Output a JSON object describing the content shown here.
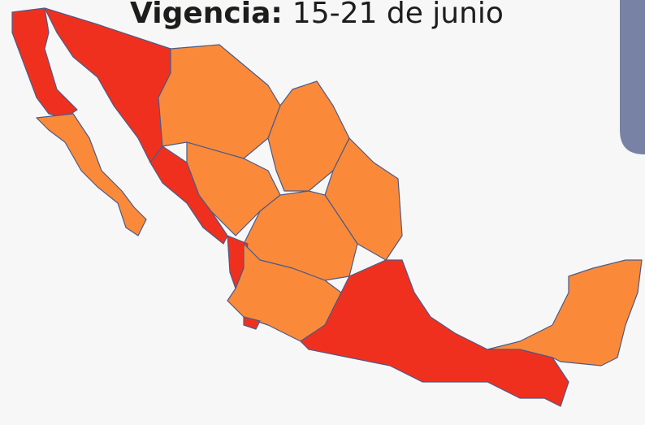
{
  "title": {
    "label": "Vigencia:",
    "dates": "15-21 de junio"
  }
}
